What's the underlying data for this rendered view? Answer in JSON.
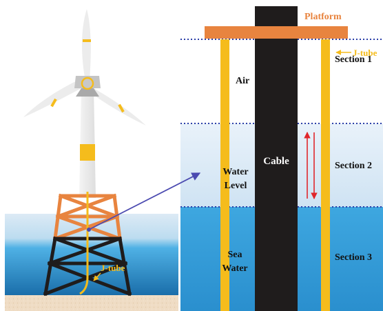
{
  "left_scene": {
    "j_tube_label": "J-tube"
  },
  "right_detail": {
    "platform_label": "Platform",
    "j_tube_label": "J-tube",
    "cable_label": "Cable",
    "zone_air": "Air",
    "zone_water_level_line1": "Water",
    "zone_water_level_line2": "Level",
    "zone_sea_water_line1": "Sea",
    "zone_sea_water_line2": "Water",
    "section_1": "Section 1",
    "section_2": "Section 2",
    "section_3": "Section 3"
  },
  "colors": {
    "platform": "#e8843f",
    "jacket": "#e8843f",
    "j_tube": "#f5bc1c",
    "cable": "#1f1c1c",
    "section_divider": "#2b3fa8",
    "double_arrow": "#e0262b",
    "pointer_arrow": "#4b4ab0",
    "sky_band": "#dceaf5",
    "water_band": "#4aaee3",
    "deep_water": "#1f77b5",
    "seabed": "#efdcc4",
    "turbine": "#ececec"
  }
}
